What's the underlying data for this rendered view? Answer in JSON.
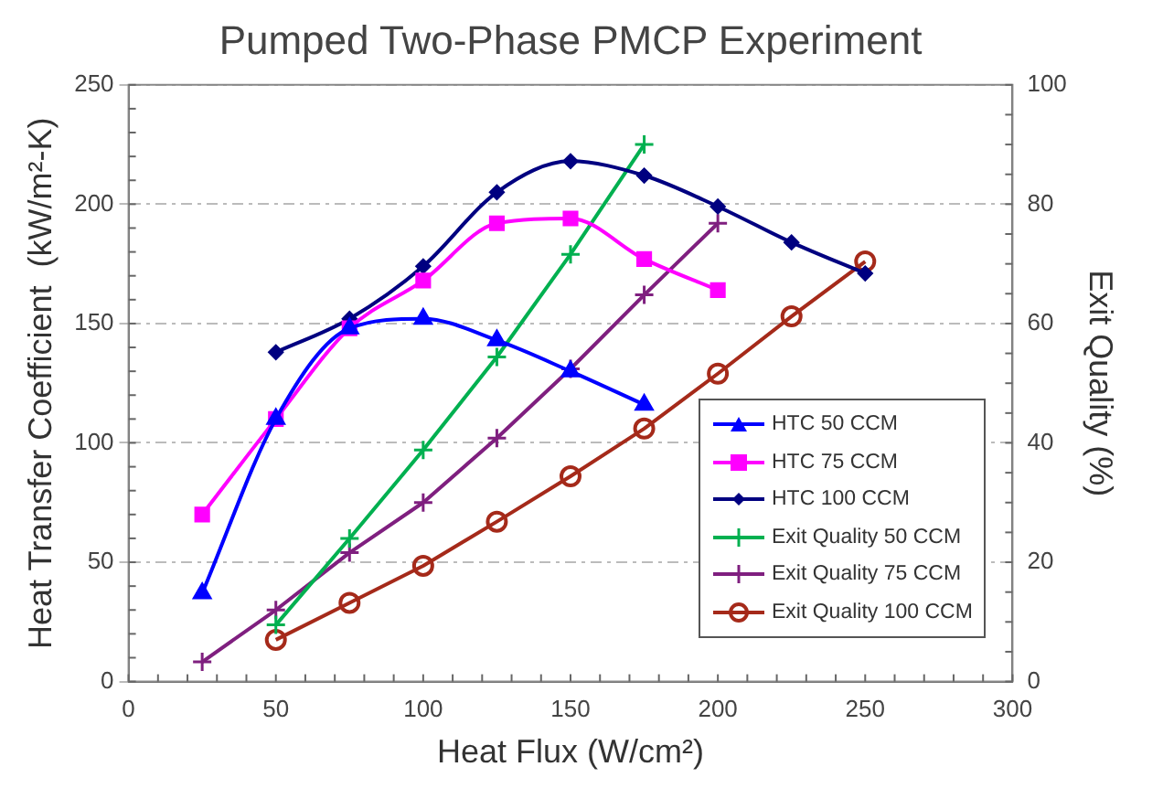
{
  "chart_data": {
    "type": "line",
    "title": "Pumped Two-Phase PMCP Experiment",
    "xlabel": "Heat Flux (W/cm²)",
    "ylabel": "Heat Transfer Coefficient  (kW/m²-K)",
    "y2label": "Exit Quality (%)",
    "xlim": [
      0,
      300
    ],
    "xticks": [
      0,
      50,
      100,
      150,
      200,
      250,
      300
    ],
    "ylim": [
      0,
      250
    ],
    "yticks": [
      0,
      50,
      100,
      150,
      200,
      250
    ],
    "y2lim": [
      0,
      100
    ],
    "y2ticks": [
      0,
      20,
      40,
      60,
      80,
      100
    ],
    "grid": "y",
    "legend": "bottom right",
    "series": [
      {
        "name": "HTC 50 CCM",
        "color": "#0000ff",
        "marker": "triangle",
        "x": [
          25,
          50,
          75,
          100,
          125,
          150,
          175
        ],
        "values": [
          37,
          110,
          148,
          152,
          143,
          130,
          116
        ]
      },
      {
        "name": "HTC 75 CCM",
        "color": "#ff00ff",
        "marker": "square",
        "x": [
          25,
          50,
          75,
          100,
          125,
          150,
          175,
          200
        ],
        "values": [
          70,
          110,
          148,
          168,
          192,
          194,
          177,
          164
        ]
      },
      {
        "name": "HTC 100 CCM",
        "color": "#000080",
        "marker": "diamond",
        "x": [
          50,
          75,
          100,
          125,
          150,
          175,
          200,
          225,
          250
        ],
        "values": [
          138,
          152,
          174,
          205,
          218,
          212,
          199,
          184,
          171
        ]
      },
      {
        "name": "Exit Quality 50 CCM",
        "color": "#00b050",
        "marker": "cross",
        "axis": "y2",
        "x": [
          50,
          75,
          100,
          125,
          150,
          175
        ],
        "values": [
          9.5,
          24,
          38.8,
          54.4,
          71.6,
          90
        ]
      },
      {
        "name": "Exit Quality 75 CCM",
        "color": "#7f1f7f",
        "marker": "cross",
        "axis": "y2",
        "x": [
          25,
          50,
          75,
          100,
          125,
          150,
          175,
          200
        ],
        "values": [
          3.3,
          12,
          21.6,
          30,
          40.8,
          52.4,
          64.8,
          76.8
        ]
      },
      {
        "name": "Exit Quality 100 CCM",
        "color": "#a52a1a",
        "marker": "circle",
        "axis": "y2",
        "x": [
          50,
          75,
          100,
          125,
          150,
          175,
          200,
          225,
          250
        ],
        "values": [
          7,
          13.2,
          19.4,
          26.8,
          34.4,
          42.4,
          51.6,
          61.2,
          70.4
        ]
      }
    ]
  }
}
